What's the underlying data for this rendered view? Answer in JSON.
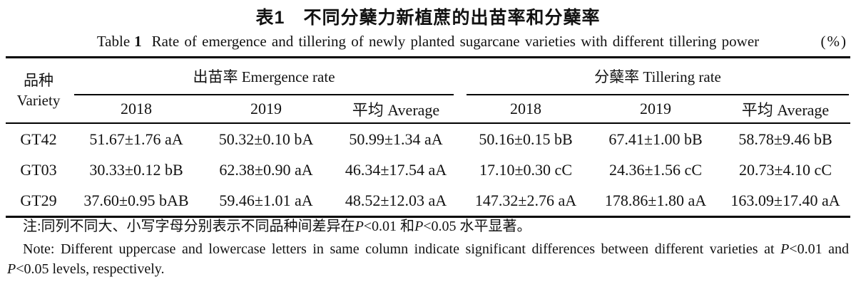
{
  "title": {
    "zh": "表1　不同分蘖力新植蔗的出苗率和分蘖率",
    "en_label": "Table",
    "en_number": "1",
    "en_text": "Rate of emergence and tillering of newly planted sugarcane varieties with different tillering power",
    "unit": "(%)"
  },
  "table": {
    "variety_header": {
      "zh": "品种",
      "en": "Variety"
    },
    "group_headers": {
      "emergence": "出苗率 Emergence rate",
      "tillering": "分蘖率 Tillering rate"
    },
    "year_headers": [
      "2018",
      "2019",
      "平均 Average",
      "2018",
      "2019",
      "平均 Average"
    ],
    "rows": [
      {
        "variety": "GT42",
        "values": [
          "51.67±1.76 aA",
          "50.32±0.10 bA",
          "50.99±1.34 aA",
          "50.16±0.15 bB",
          "67.41±1.00 bB",
          "58.78±9.46 bB"
        ]
      },
      {
        "variety": "GT03",
        "values": [
          "30.33±0.12 bB",
          "62.38±0.90 aA",
          "46.34±17.54 aA",
          "17.10±0.30 cC",
          "24.36±1.56 cC",
          "20.73±4.10 cC"
        ]
      },
      {
        "variety": "GT29",
        "values": [
          "37.60±0.95 bAB",
          "59.46±1.01 aA",
          "48.52±12.03 aA",
          "147.32±2.76 aA",
          "178.86±1.80 aA",
          "163.09±17.40 aA"
        ]
      }
    ]
  },
  "notes": {
    "zh_segments": [
      {
        "t": "注:同列不同大、小写字母分别表示不同品种间差异在",
        "i": false
      },
      {
        "t": "P",
        "i": true
      },
      {
        "t": "<0.01 和",
        "i": false
      },
      {
        "t": "P",
        "i": true
      },
      {
        "t": "<0.05 水平显著。",
        "i": false
      }
    ],
    "en_line1_segments": [
      {
        "t": "Note: Different uppercase and lowercase letters in same column indicate significant differences between different varieties at ",
        "i": false
      },
      {
        "t": "P",
        "i": true
      },
      {
        "t": "<0.01 and",
        "i": false
      }
    ],
    "en_line2_segments": [
      {
        "t": "P",
        "i": true
      },
      {
        "t": "<0.05 levels, respectively.",
        "i": false
      }
    ]
  }
}
